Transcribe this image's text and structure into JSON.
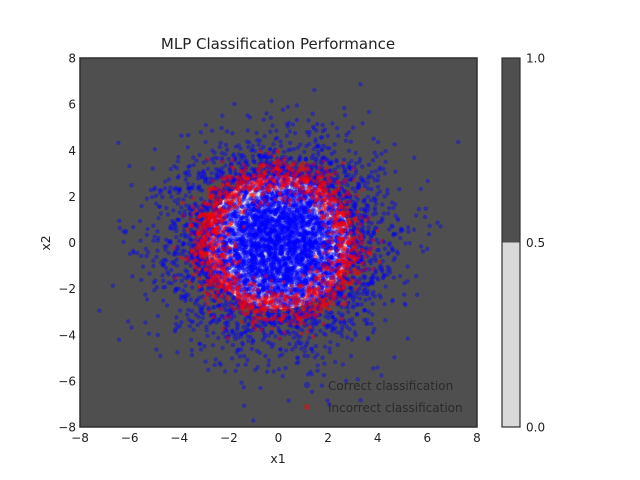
{
  "chart_data": {
    "type": "scatter",
    "title": "MLP Classification Performance",
    "xlabel": "x1",
    "ylabel": "x2",
    "xlim": [
      -8,
      8
    ],
    "ylim": [
      -8,
      8
    ],
    "xticks": [
      "−8",
      "−6",
      "−4",
      "−2",
      "0",
      "2",
      "4",
      "6",
      "8"
    ],
    "yticks": [
      "−8",
      "−6",
      "−4",
      "−2",
      "0",
      "2",
      "4",
      "6",
      "8"
    ],
    "xtick_values": [
      -8,
      -6,
      -4,
      -2,
      0,
      2,
      4,
      6,
      8
    ],
    "ytick_values": [
      -8,
      -6,
      -4,
      -2,
      0,
      2,
      4,
      6,
      8
    ],
    "grid": false,
    "background_color": "#4f4f4f",
    "series": [
      {
        "name": "Correct classification",
        "color": "#0000ff",
        "opacity": 0.4,
        "distribution": "gaussian",
        "center": [
          0,
          0
        ],
        "std": 2.0,
        "approx_count": 6000
      },
      {
        "name": "Incorrect classification",
        "color": "#ff0000",
        "opacity": 0.4,
        "distribution": "ring",
        "center": [
          0,
          0
        ],
        "ring_radius": 2.9,
        "ring_spread": 0.45,
        "approx_count": 1500
      }
    ],
    "decision_region": {
      "inner_radius": 2.9,
      "inner_color": "#d9d9d9",
      "outer_color": "#4f4f4f"
    },
    "legend": {
      "placement": "lower-right",
      "entries": [
        "Correct classification",
        "Incorrect classification"
      ]
    },
    "colorbar": {
      "range": [
        0,
        1
      ],
      "ticks": [
        "0.0",
        "0.5",
        "1.0"
      ],
      "tick_values": [
        0.0,
        0.5,
        1.0
      ],
      "boundary": 0.5,
      "low_color": "#d9d9d9",
      "high_color": "#4f4f4f"
    }
  }
}
